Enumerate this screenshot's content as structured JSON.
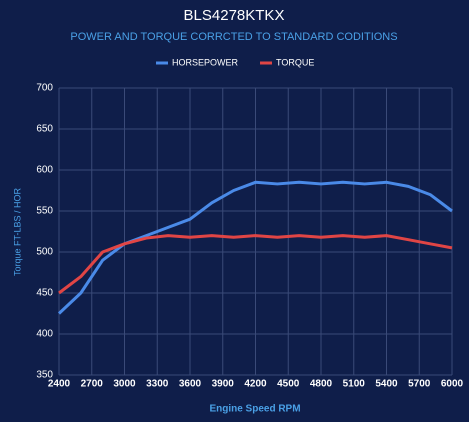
{
  "chart_data": {
    "type": "line",
    "title": "BLS4278KTKX",
    "subtitle": "POWER AND TORQUE CORRCTED TO STANDARD CODITIONS",
    "x_label": "Engine Speed RPM",
    "y_label": "Torque FT-LBS / HOR",
    "x": [
      2400,
      2600,
      2800,
      3000,
      3200,
      3400,
      3600,
      3800,
      4000,
      4200,
      4400,
      4600,
      4800,
      5000,
      5200,
      5400,
      5600,
      5800,
      6000
    ],
    "series": [
      {
        "name": "HORSEPOWER",
        "color": "#4a8ae8",
        "values": [
          425,
          450,
          490,
          510,
          520,
          530,
          540,
          560,
          575,
          585,
          583,
          585,
          583,
          585,
          583,
          585,
          580,
          570,
          550
        ]
      },
      {
        "name": "TORQUE",
        "color": "#e04545",
        "values": [
          450,
          470,
          500,
          510,
          517,
          520,
          518,
          520,
          518,
          520,
          518,
          520,
          518,
          520,
          518,
          520,
          515,
          510,
          505
        ]
      }
    ],
    "xlim": [
      2400,
      6000
    ],
    "xticks": [
      2400,
      2700,
      3000,
      3300,
      3600,
      3900,
      4200,
      4500,
      4800,
      5100,
      5400,
      5700,
      6000
    ],
    "ylim": [
      350,
      700
    ],
    "yticks": [
      350,
      400,
      450,
      500,
      550,
      600,
      650,
      700
    ],
    "grid": true,
    "legend": "top"
  }
}
